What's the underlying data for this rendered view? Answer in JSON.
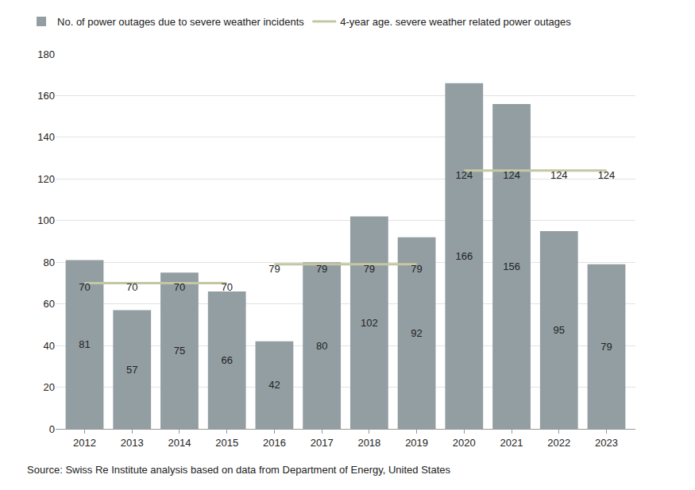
{
  "chart_data": {
    "type": "bar",
    "categories": [
      "2012",
      "2013",
      "2014",
      "2015",
      "2016",
      "2017",
      "2018",
      "2019",
      "2020",
      "2021",
      "2022",
      "2023"
    ],
    "series": [
      {
        "name": "No. of power outages due to severe weather incidents",
        "type": "bar",
        "color": "#939ea3",
        "values": [
          81,
          57,
          75,
          66,
          42,
          80,
          102,
          92,
          166,
          156,
          95,
          79
        ]
      },
      {
        "name": "4-year age. severe weather related power outages",
        "type": "line",
        "color": "#c4c7a3",
        "values": [
          70,
          70,
          70,
          70,
          79,
          79,
          79,
          79,
          124,
          124,
          124,
          124
        ]
      }
    ],
    "ylim": [
      0,
      180
    ],
    "yticks": [
      0,
      20,
      40,
      60,
      80,
      100,
      120,
      140,
      160,
      180
    ],
    "grid": true,
    "legend": "top-left",
    "data_labels": true,
    "annotations": [
      "Source: Swiss Re Institute analysis based on data from Department of Energy, United States"
    ]
  }
}
